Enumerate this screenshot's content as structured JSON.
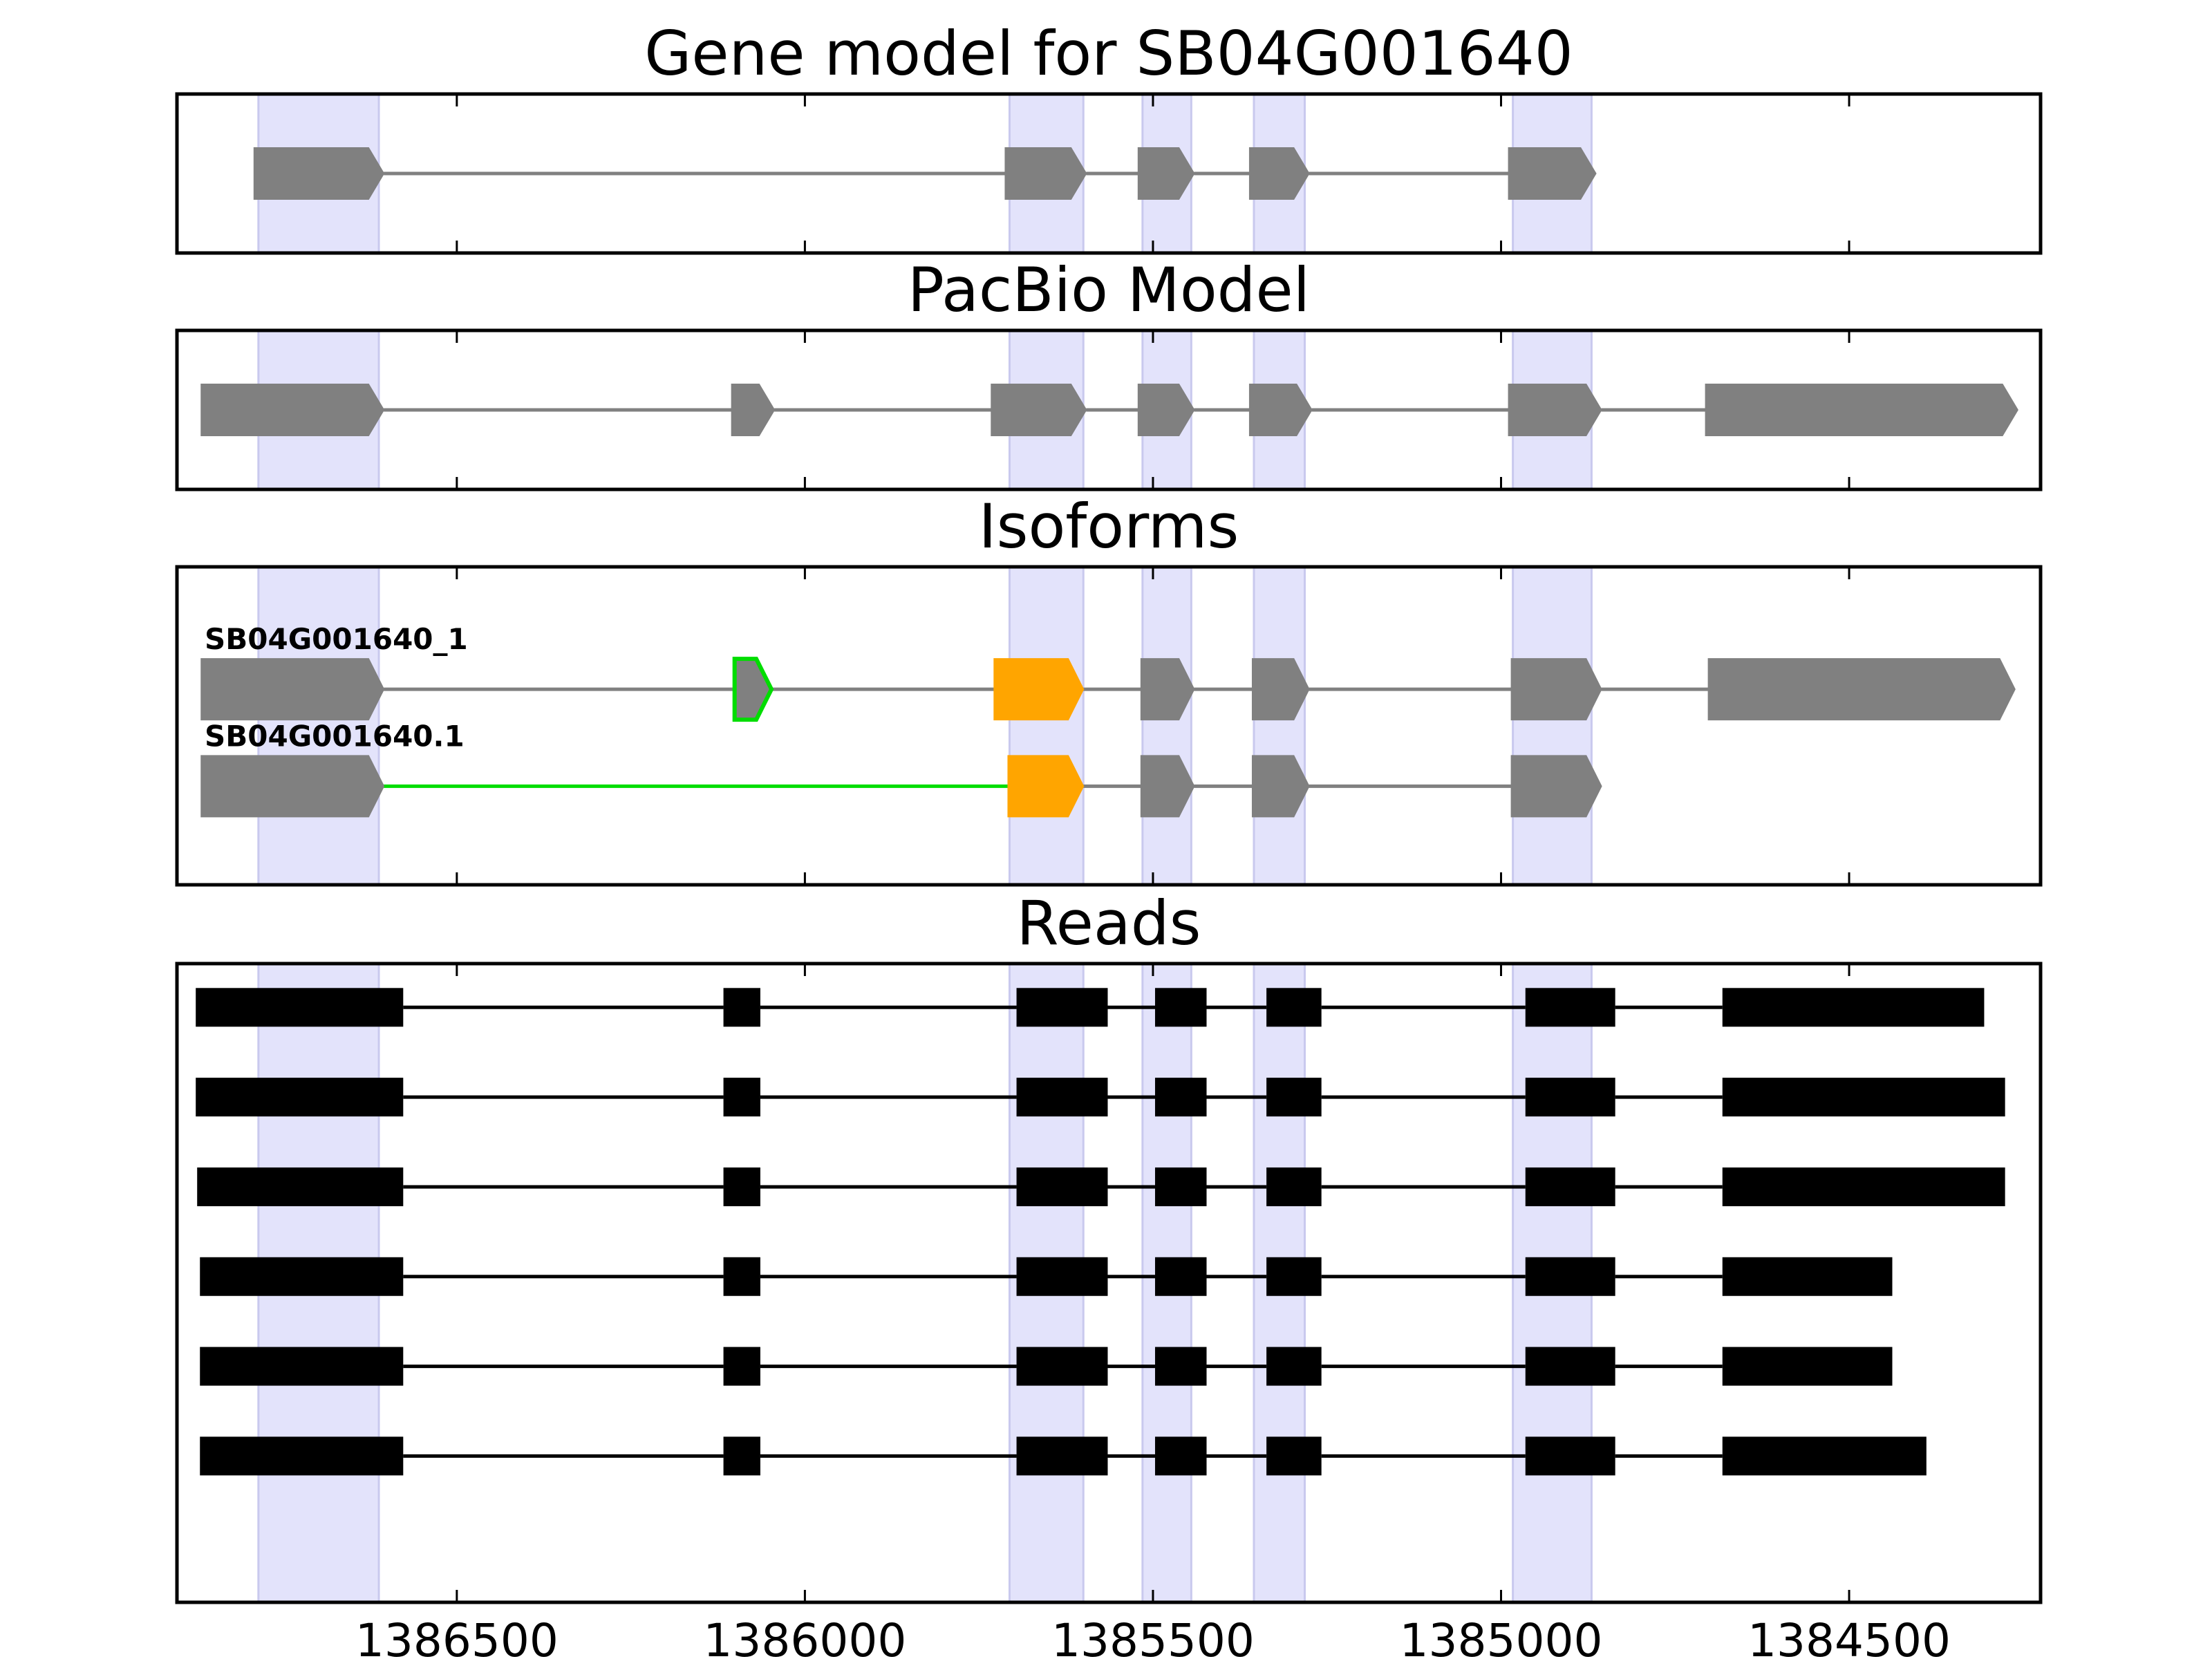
{
  "chart_data": {
    "type": "gene-structure",
    "x_axis": {
      "reversed": true,
      "xlim": [
        1386902,
        1384225
      ],
      "ticks": [
        1386500,
        1386000,
        1385500,
        1385000,
        1384500
      ],
      "tick_labels": [
        "1386500",
        "1386000",
        "1385500",
        "1385000",
        "1384500"
      ]
    },
    "highlight_color": "#e3e3fb",
    "intron_color": "#808080",
    "exon_color": "#808080",
    "highlight_regions": [
      [
        1386785,
        1386612
      ],
      [
        1385706,
        1385600
      ],
      [
        1385515,
        1385445
      ],
      [
        1385355,
        1385282
      ],
      [
        1384983,
        1384870
      ]
    ],
    "panels": [
      {
        "title": "Gene model for SB04G001640",
        "tracks": [
          {
            "label": "",
            "strand": "-",
            "exons": [
              {
                "start": 1386791,
                "end": 1386605,
                "color": "#808080"
              },
              {
                "start": 1385712,
                "end": 1385596,
                "color": "#808080"
              },
              {
                "start": 1385521,
                "end": 1385441,
                "color": "#808080"
              },
              {
                "start": 1385361,
                "end": 1385276,
                "color": "#808080"
              },
              {
                "start": 1384989,
                "end": 1384864,
                "color": "#808080"
              }
            ]
          }
        ]
      },
      {
        "title": "PacBio Model",
        "tracks": [
          {
            "label": "",
            "strand": "-",
            "exons": [
              {
                "start": 1386867,
                "end": 1386605,
                "color": "#808080"
              },
              {
                "start": 1386105,
                "end": 1386044,
                "color": "#808080"
              },
              {
                "start": 1385732,
                "end": 1385596,
                "color": "#808080"
              },
              {
                "start": 1385521,
                "end": 1385441,
                "color": "#808080"
              },
              {
                "start": 1385361,
                "end": 1385272,
                "color": "#808080"
              },
              {
                "start": 1384989,
                "end": 1384856,
                "color": "#808080"
              },
              {
                "start": 1384706,
                "end": 1384258,
                "color": "#808080"
              }
            ]
          }
        ]
      },
      {
        "title": "Isoforms",
        "tracks": [
          {
            "label": "SB04G001640_1",
            "strand": "-",
            "exons": [
              {
                "start": 1386867,
                "end": 1386605,
                "color": "#808080"
              },
              {
                "start": 1386101,
                "end": 1386048,
                "color": "#808080",
                "outline": "#00dd00"
              },
              {
                "start": 1385728,
                "end": 1385600,
                "color": "#ffa500"
              },
              {
                "start": 1385517,
                "end": 1385441,
                "color": "#808080"
              },
              {
                "start": 1385357,
                "end": 1385276,
                "color": "#808080"
              },
              {
                "start": 1384985,
                "end": 1384856,
                "color": "#808080"
              },
              {
                "start": 1384702,
                "end": 1384262,
                "color": "#808080"
              }
            ],
            "introns": [
              {
                "color": "#808080"
              },
              {
                "color": "#808080"
              },
              {
                "color": "#808080"
              },
              {
                "color": "#808080"
              },
              {
                "color": "#808080"
              },
              {
                "color": "#808080"
              }
            ]
          },
          {
            "label": "SB04G001640.1",
            "strand": "-",
            "exons": [
              {
                "start": 1386867,
                "end": 1386605,
                "color": "#808080"
              },
              {
                "start": 1385708,
                "end": 1385600,
                "color": "#ffa500"
              },
              {
                "start": 1385517,
                "end": 1385441,
                "color": "#808080"
              },
              {
                "start": 1385357,
                "end": 1385276,
                "color": "#808080"
              },
              {
                "start": 1384985,
                "end": 1384856,
                "color": "#808080"
              }
            ],
            "introns": [
              {
                "color": "#00dd00"
              },
              {
                "color": "#808080"
              },
              {
                "color": "#808080"
              },
              {
                "color": "#808080"
              }
            ]
          }
        ]
      },
      {
        "title": "Reads",
        "tracks": [
          {
            "label": "",
            "strand": "none",
            "exons": [
              {
                "start": 1386875,
                "end": 1386577
              },
              {
                "start": 1386117,
                "end": 1386064
              },
              {
                "start": 1385696,
                "end": 1385565
              },
              {
                "start": 1385497,
                "end": 1385423
              },
              {
                "start": 1385337,
                "end": 1385258
              },
              {
                "start": 1384965,
                "end": 1384836
              },
              {
                "start": 1384682,
                "end": 1384306
              }
            ]
          },
          {
            "label": "",
            "strand": "none",
            "exons": [
              {
                "start": 1386875,
                "end": 1386577
              },
              {
                "start": 1386117,
                "end": 1386064
              },
              {
                "start": 1385696,
                "end": 1385565
              },
              {
                "start": 1385497,
                "end": 1385423
              },
              {
                "start": 1385337,
                "end": 1385258
              },
              {
                "start": 1384965,
                "end": 1384836
              },
              {
                "start": 1384682,
                "end": 1384276
              }
            ]
          },
          {
            "label": "",
            "strand": "none",
            "exons": [
              {
                "start": 1386873,
                "end": 1386577
              },
              {
                "start": 1386117,
                "end": 1386064
              },
              {
                "start": 1385696,
                "end": 1385565
              },
              {
                "start": 1385497,
                "end": 1385423
              },
              {
                "start": 1385337,
                "end": 1385258
              },
              {
                "start": 1384965,
                "end": 1384836
              },
              {
                "start": 1384682,
                "end": 1384276
              }
            ]
          },
          {
            "label": "",
            "strand": "none",
            "exons": [
              {
                "start": 1386869,
                "end": 1386577
              },
              {
                "start": 1386117,
                "end": 1386064
              },
              {
                "start": 1385696,
                "end": 1385565
              },
              {
                "start": 1385497,
                "end": 1385423
              },
              {
                "start": 1385337,
                "end": 1385258
              },
              {
                "start": 1384965,
                "end": 1384836
              },
              {
                "start": 1384682,
                "end": 1384438
              }
            ]
          },
          {
            "label": "",
            "strand": "none",
            "exons": [
              {
                "start": 1386869,
                "end": 1386577
              },
              {
                "start": 1386117,
                "end": 1386064
              },
              {
                "start": 1385696,
                "end": 1385565
              },
              {
                "start": 1385497,
                "end": 1385423
              },
              {
                "start": 1385337,
                "end": 1385258
              },
              {
                "start": 1384965,
                "end": 1384836
              },
              {
                "start": 1384682,
                "end": 1384438
              }
            ]
          },
          {
            "label": "",
            "strand": "none",
            "exons": [
              {
                "start": 1386869,
                "end": 1386577
              },
              {
                "start": 1386117,
                "end": 1386064
              },
              {
                "start": 1385696,
                "end": 1385565
              },
              {
                "start": 1385497,
                "end": 1385423
              },
              {
                "start": 1385337,
                "end": 1385258
              },
              {
                "start": 1384965,
                "end": 1384836
              },
              {
                "start": 1384682,
                "end": 1384389
              }
            ]
          }
        ]
      }
    ]
  }
}
